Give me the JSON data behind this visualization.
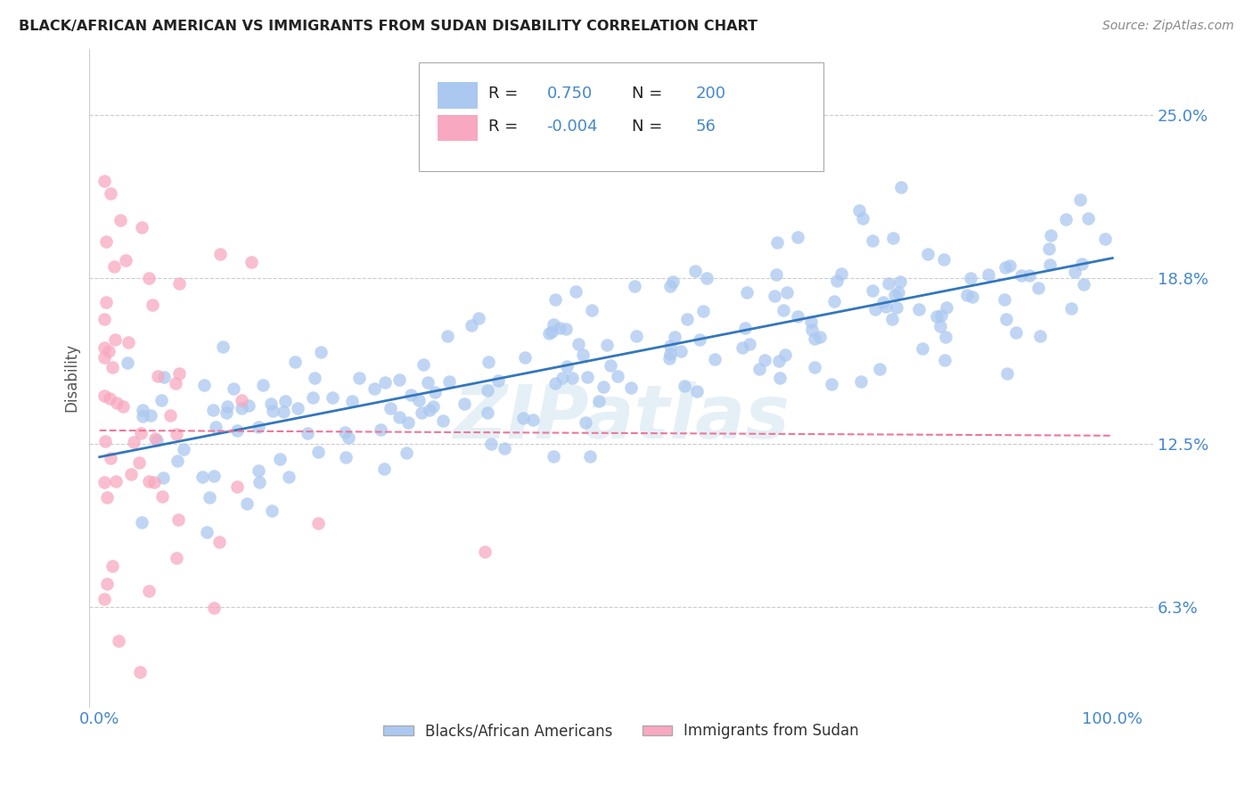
{
  "title": "BLACK/AFRICAN AMERICAN VS IMMIGRANTS FROM SUDAN DISABILITY CORRELATION CHART",
  "source": "Source: ZipAtlas.com",
  "ylabel": "Disability",
  "blue_R": "0.750",
  "blue_N": "200",
  "pink_R": "-0.004",
  "pink_N": "56",
  "blue_color": "#aac8f0",
  "pink_color": "#f8a8c0",
  "blue_line_color": "#3377bb",
  "pink_line_color": "#ee7799",
  "legend_label_blue": "Blacks/African Americans",
  "legend_label_pink": "Immigrants from Sudan",
  "watermark": "ZIPatlas",
  "background_color": "#ffffff",
  "grid_color": "#cccccc",
  "title_color": "#222222",
  "axis_label_color": "#4488cc",
  "yticks": [
    0.063,
    0.125,
    0.188,
    0.25
  ],
  "ytick_labels": [
    "6.3%",
    "12.5%",
    "18.8%",
    "25.0%"
  ]
}
